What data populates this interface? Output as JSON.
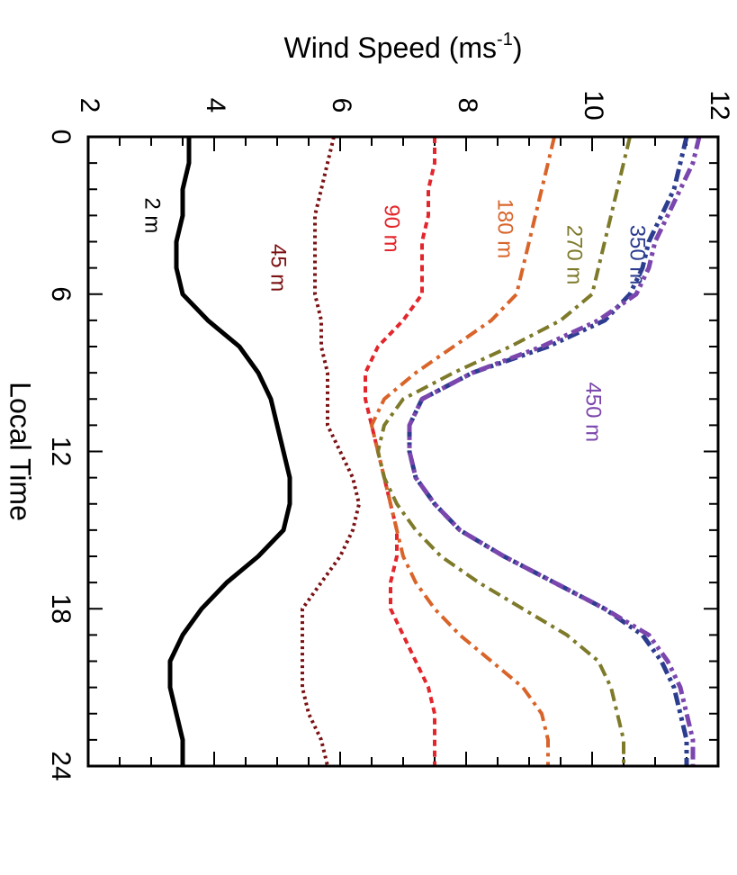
{
  "chart_data": {
    "type": "line",
    "xlabel": "Local Time",
    "ylabel": "Wind Speed",
    "ylabel_unit_base": "ms",
    "ylabel_unit_exp": "-1",
    "xlim": [
      0,
      24
    ],
    "ylim": [
      2,
      12
    ],
    "x_ticks": [
      0,
      6,
      12,
      18,
      24
    ],
    "y_ticks": [
      2,
      4,
      6,
      8,
      10,
      12
    ],
    "x_tick_labels": [
      "0",
      "6",
      "12",
      "18",
      "24"
    ],
    "y_tick_labels": [
      "2",
      "4",
      "6",
      "8",
      "10",
      "12"
    ],
    "grid": false,
    "orientation": "figure rotated 90 degrees clockwise",
    "x": [
      0,
      1,
      2,
      3,
      4,
      5,
      6,
      7,
      8,
      9,
      10,
      11,
      12,
      13,
      14,
      15,
      16,
      17,
      18,
      19,
      20,
      21,
      22,
      23,
      24
    ],
    "series": [
      {
        "name": "2 m",
        "color": "#000000",
        "style": "solid",
        "values": [
          3.6,
          3.6,
          3.5,
          3.5,
          3.4,
          3.4,
          3.5,
          3.9,
          4.4,
          4.7,
          4.9,
          5.0,
          5.1,
          5.2,
          5.2,
          5.1,
          4.7,
          4.2,
          3.8,
          3.5,
          3.3,
          3.3,
          3.4,
          3.5,
          3.5
        ]
      },
      {
        "name": "45 m",
        "color": "#7b1113",
        "style": "dotted",
        "values": [
          5.9,
          5.8,
          5.7,
          5.6,
          5.6,
          5.6,
          5.6,
          5.7,
          5.7,
          5.8,
          5.8,
          5.8,
          6.0,
          6.2,
          6.3,
          6.2,
          6.0,
          5.7,
          5.4,
          5.4,
          5.4,
          5.4,
          5.5,
          5.7,
          5.8
        ]
      },
      {
        "name": "90 m",
        "color": "#e3262c",
        "style": "dashed",
        "values": [
          7.5,
          7.5,
          7.4,
          7.4,
          7.3,
          7.3,
          7.3,
          7.0,
          6.6,
          6.4,
          6.4,
          6.5,
          6.6,
          6.7,
          6.8,
          6.9,
          6.9,
          6.8,
          6.8,
          7.0,
          7.2,
          7.4,
          7.5,
          7.5,
          7.5
        ]
      },
      {
        "name": "180 m",
        "color": "#d9642a",
        "style": "dashdot",
        "values": [
          9.4,
          9.3,
          9.2,
          9.1,
          9.0,
          8.9,
          8.8,
          8.4,
          7.8,
          7.2,
          6.7,
          6.5,
          6.6,
          6.7,
          6.8,
          6.9,
          7.0,
          7.2,
          7.5,
          7.9,
          8.4,
          8.9,
          9.2,
          9.3,
          9.3
        ]
      },
      {
        "name": "270 m",
        "color": "#7e7a2a",
        "style": "dashdot",
        "values": [
          10.6,
          10.5,
          10.4,
          10.3,
          10.2,
          10.1,
          10.0,
          9.5,
          8.7,
          7.8,
          7.0,
          6.7,
          6.6,
          6.7,
          6.9,
          7.2,
          7.6,
          8.2,
          8.9,
          9.6,
          10.1,
          10.3,
          10.4,
          10.5,
          10.5
        ]
      },
      {
        "name": "350 m",
        "color": "#2c3d8f",
        "style": "dashdotdot",
        "values": [
          11.5,
          11.4,
          11.3,
          11.1,
          10.9,
          10.8,
          10.6,
          10.2,
          9.3,
          8.1,
          7.3,
          7.1,
          7.1,
          7.2,
          7.5,
          7.9,
          8.6,
          9.4,
          10.2,
          10.8,
          11.1,
          11.3,
          11.4,
          11.5,
          11.5
        ]
      },
      {
        "name": "450 m",
        "color": "#7b46ad",
        "style": "dashdotdot",
        "values": [
          11.7,
          11.6,
          11.4,
          11.2,
          11.0,
          10.9,
          10.7,
          10.1,
          9.2,
          8.1,
          7.3,
          7.1,
          7.1,
          7.2,
          7.5,
          7.9,
          8.6,
          9.4,
          10.2,
          10.9,
          11.2,
          11.4,
          11.5,
          11.6,
          11.6
        ]
      }
    ]
  }
}
